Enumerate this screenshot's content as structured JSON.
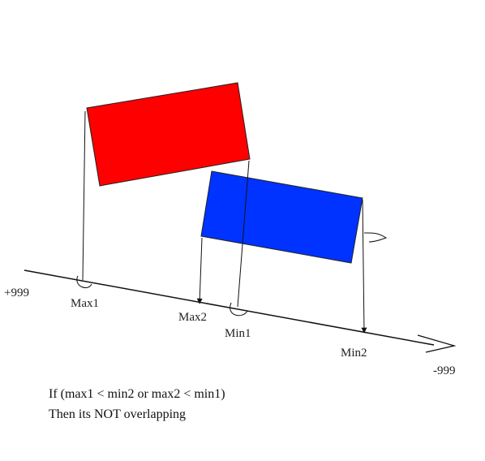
{
  "diagram": {
    "shapes": {
      "red_rect": {
        "color": "#ff0000"
      },
      "blue_rect": {
        "color": "#0033ff"
      }
    },
    "axis": {
      "left_label": "+999",
      "right_label": "-999"
    },
    "labels": {
      "max1": "Max1",
      "max2": "Max2",
      "min1": "Min1",
      "min2": "Min2"
    },
    "condition": {
      "line1": "If (max1 < min2 or max2 < min1)",
      "line2": "Then its NOT overlapping"
    }
  }
}
